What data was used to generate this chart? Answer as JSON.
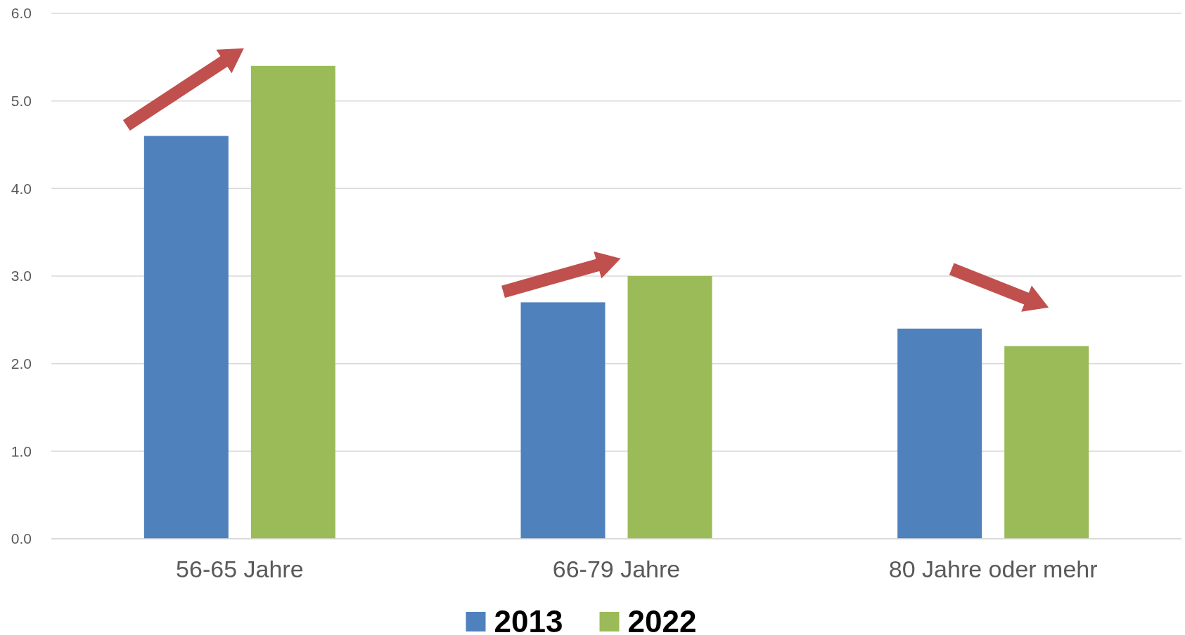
{
  "chart_data": {
    "type": "bar",
    "categories": [
      "56-65 Jahre",
      "66-79 Jahre",
      "80 Jahre oder mehr"
    ],
    "series": [
      {
        "name": "2013",
        "color": "#4f81bd",
        "values": [
          4.6,
          2.7,
          2.4
        ]
      },
      {
        "name": "2022",
        "color": "#9bbb59",
        "values": [
          5.4,
          3.0,
          2.2
        ]
      }
    ],
    "ylim": [
      0,
      6
    ],
    "yticks": [
      {
        "value": 0,
        "label": "0.0"
      },
      {
        "value": 1,
        "label": "1.0"
      },
      {
        "value": 2,
        "label": "2.0"
      },
      {
        "value": 3,
        "label": "3.0"
      },
      {
        "value": 4,
        "label": "4.0"
      },
      {
        "value": 5,
        "label": "5.0"
      },
      {
        "value": 6,
        "label": "6.0"
      }
    ],
    "grid": "y",
    "legend": "bottom"
  }
}
